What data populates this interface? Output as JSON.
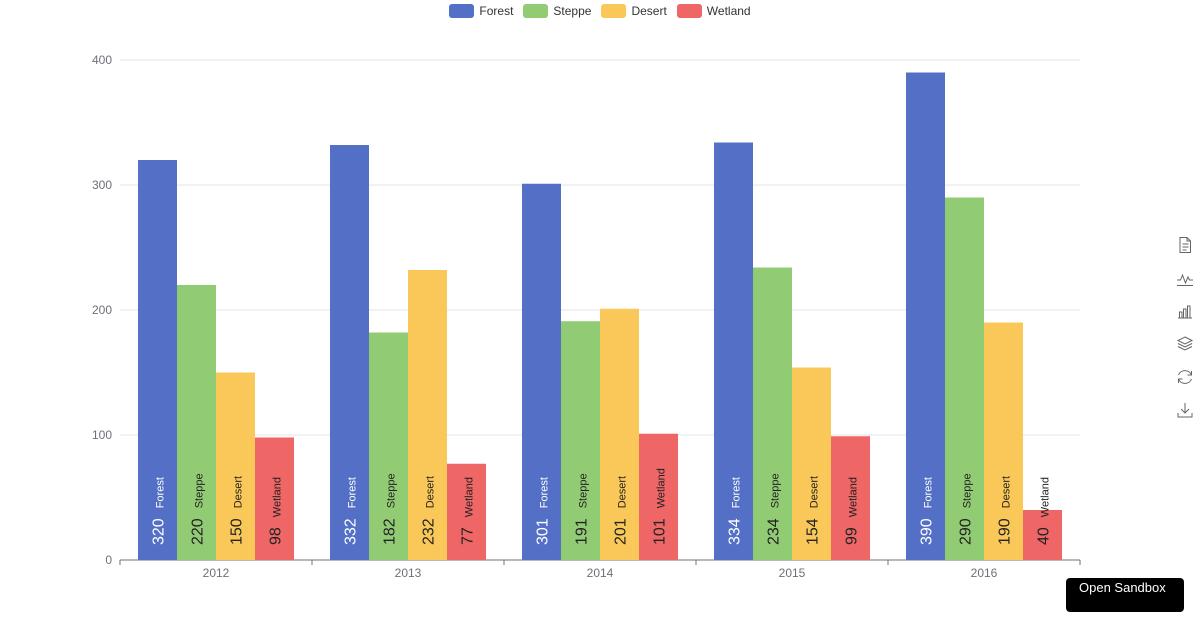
{
  "legend": [
    {
      "name": "Forest",
      "color": "#5470c6"
    },
    {
      "name": "Steppe",
      "color": "#91cc75"
    },
    {
      "name": "Desert",
      "color": "#fac858"
    },
    {
      "name": "Wetland",
      "color": "#ee6666"
    }
  ],
  "toolbox": [
    "data-view-icon",
    "line-chart-icon",
    "bar-chart-icon",
    "stack-icon",
    "restore-icon",
    "download-icon"
  ],
  "sandbox_button": "Open Sandbox",
  "chart_data": {
    "type": "bar",
    "categories": [
      "2012",
      "2013",
      "2014",
      "2015",
      "2016"
    ],
    "series": [
      {
        "name": "Forest",
        "color": "#5470c6",
        "values": [
          320,
          332,
          301,
          334,
          390
        ]
      },
      {
        "name": "Steppe",
        "color": "#91cc75",
        "values": [
          220,
          182,
          191,
          234,
          290
        ]
      },
      {
        "name": "Desert",
        "color": "#fac858",
        "values": [
          150,
          232,
          201,
          154,
          190
        ]
      },
      {
        "name": "Wetland",
        "color": "#ee6666",
        "values": [
          98,
          77,
          101,
          99,
          40
        ]
      }
    ],
    "ylim": [
      0,
      400
    ],
    "yticks": [
      0,
      100,
      200,
      300,
      400
    ],
    "grid": true,
    "legend_position": "top-center",
    "title": "",
    "xlabel": "",
    "ylabel": ""
  }
}
